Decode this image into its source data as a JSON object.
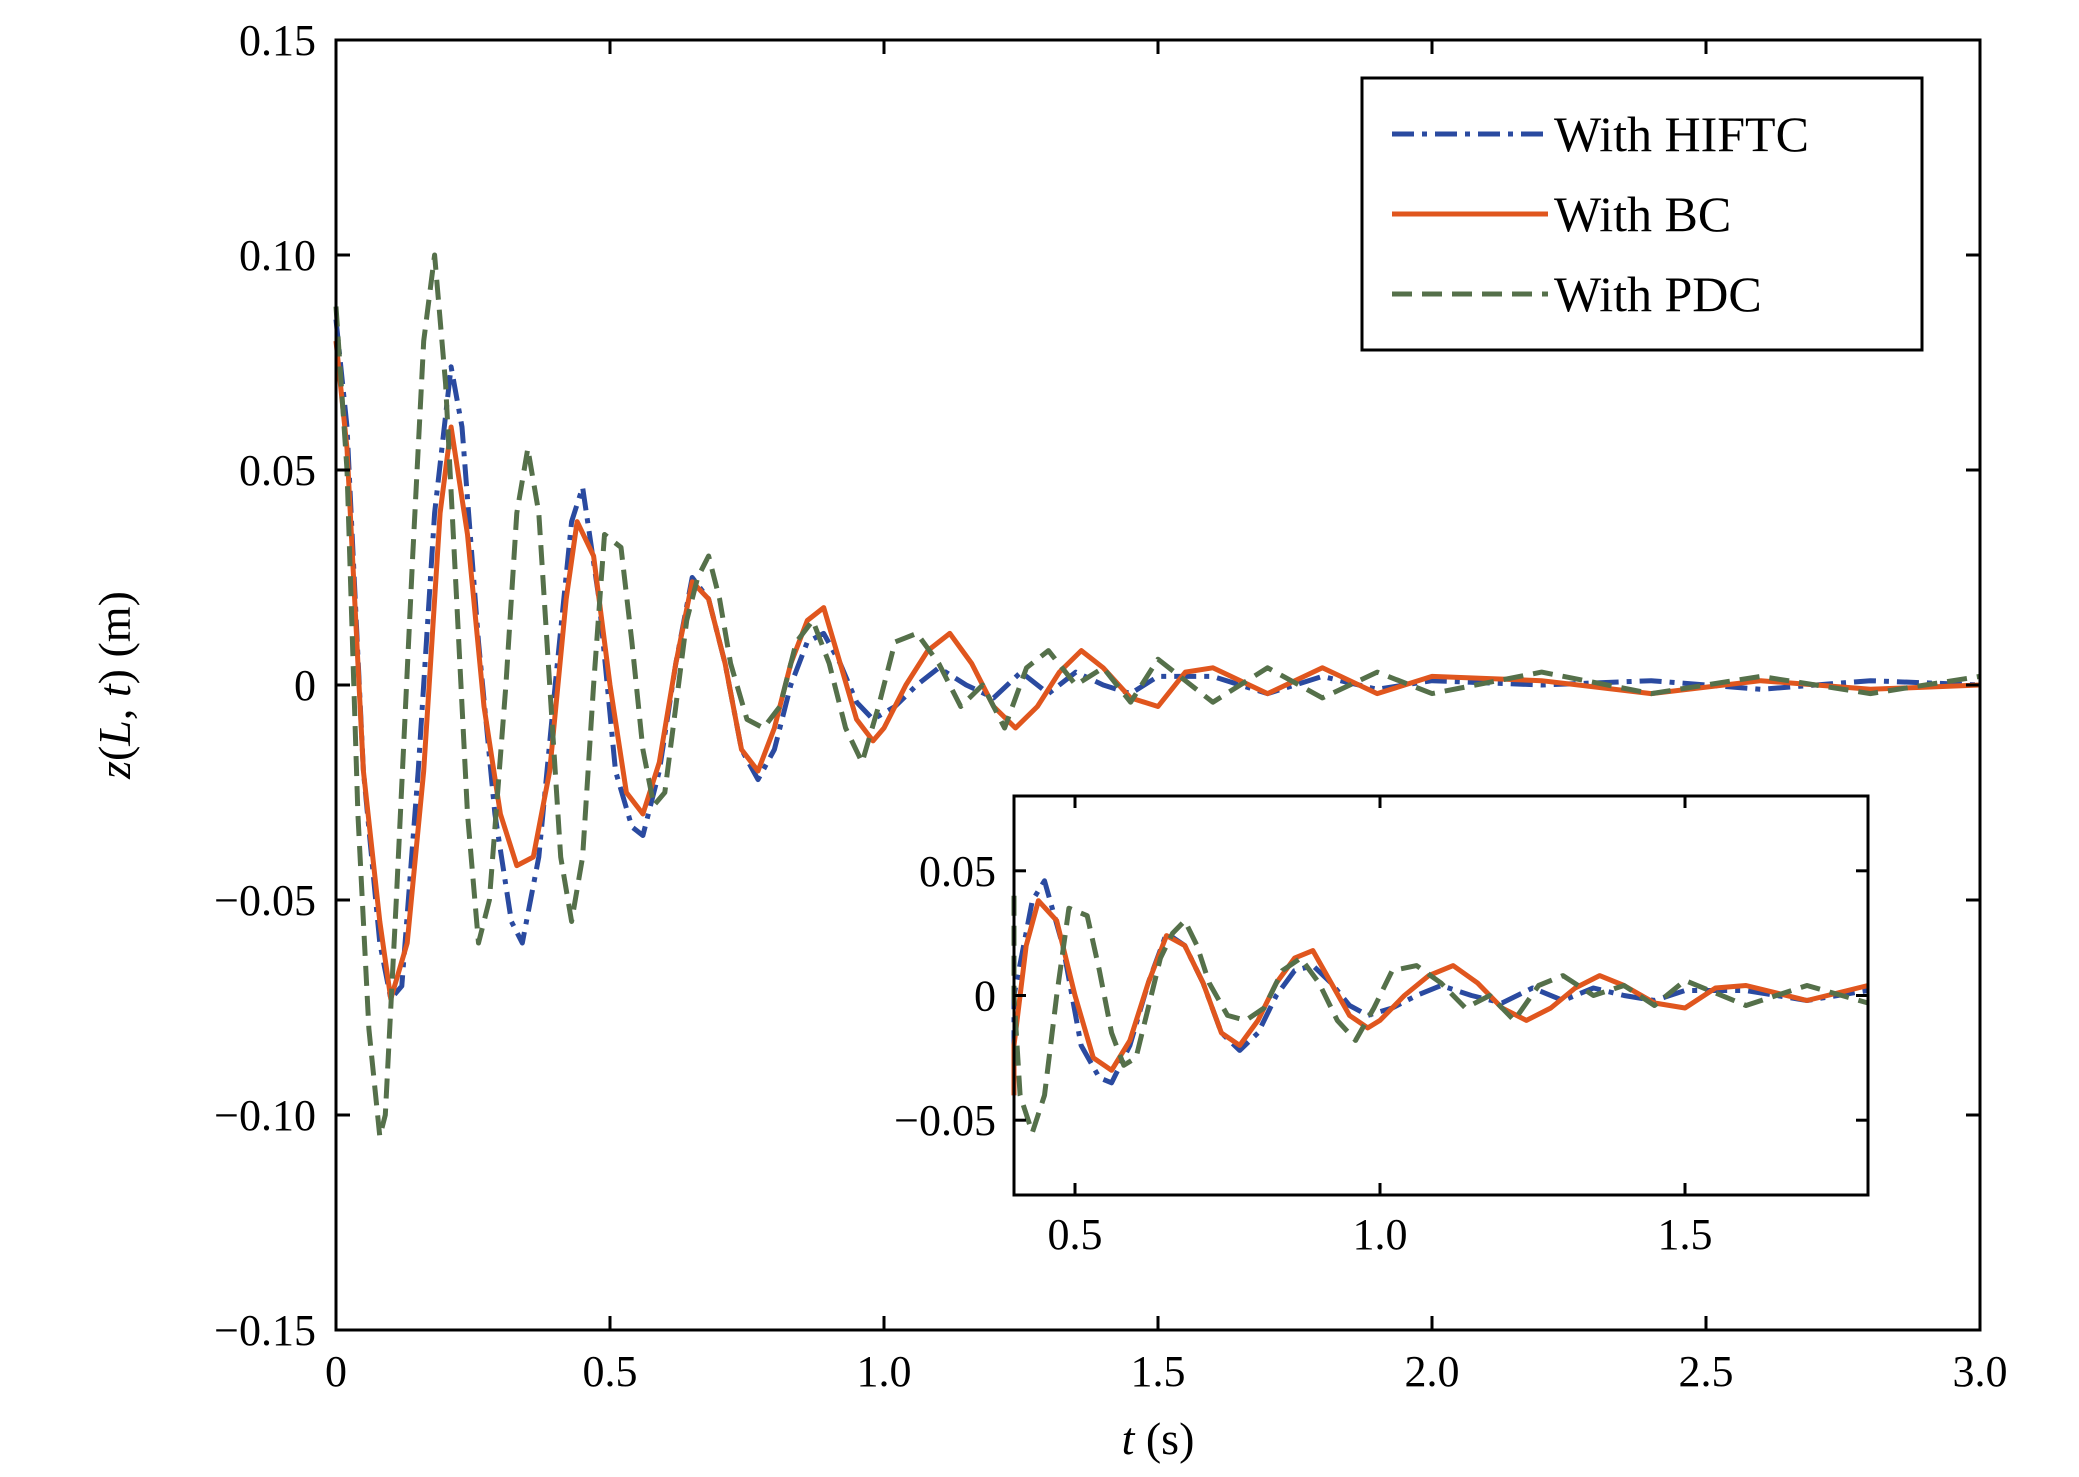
{
  "chart_data": [
    {
      "type": "line",
      "xlabel_var": "t",
      "xlabel_unit": " (s)",
      "ylabel": "z(L, t) (m)",
      "ylabel_parts": [
        "z",
        "(",
        "L",
        ", ",
        "t",
        ") (m)"
      ],
      "xlim": [
        0,
        3.0
      ],
      "ylim": [
        -0.15,
        0.15
      ],
      "x_ticks": [
        0,
        0.5,
        1.0,
        1.5,
        2.0,
        2.5,
        3.0
      ],
      "x_tick_labels": [
        "0",
        "0.5",
        "1.0",
        "1.5",
        "2.0",
        "2.5",
        "3.0"
      ],
      "y_ticks": [
        -0.15,
        -0.1,
        -0.05,
        0,
        0.05,
        0.1,
        0.15
      ],
      "y_tick_labels": [
        "−0.15",
        "−0.10",
        "−0.05",
        "0",
        "0.05",
        "0.10",
        "0.15"
      ],
      "grid": false,
      "legend_position": "top-right",
      "series": [
        {
          "name": "With HIFTC",
          "color": "#2a4aa0",
          "style": "dash-dot",
          "x": [
            0,
            0.02,
            0.05,
            0.08,
            0.1,
            0.12,
            0.15,
            0.18,
            0.21,
            0.23,
            0.26,
            0.29,
            0.32,
            0.34,
            0.37,
            0.4,
            0.43,
            0.45,
            0.48,
            0.51,
            0.54,
            0.56,
            0.59,
            0.62,
            0.65,
            0.68,
            0.71,
            0.74,
            0.77,
            0.8,
            0.83,
            0.86,
            0.89,
            0.92,
            0.95,
            0.98,
            1.02,
            1.06,
            1.1,
            1.15,
            1.2,
            1.25,
            1.3,
            1.35,
            1.4,
            1.45,
            1.5,
            1.6,
            1.7,
            1.8,
            1.9,
            2.0,
            2.2,
            2.4,
            2.6,
            2.8,
            3.0
          ],
          "y": [
            0.085,
            0.06,
            -0.02,
            -0.06,
            -0.073,
            -0.07,
            -0.02,
            0.04,
            0.074,
            0.06,
            0.01,
            -0.03,
            -0.055,
            -0.06,
            -0.04,
            0.0,
            0.038,
            0.046,
            0.02,
            -0.02,
            -0.033,
            -0.035,
            -0.02,
            0.005,
            0.025,
            0.02,
            0.005,
            -0.015,
            -0.022,
            -0.015,
            0.0,
            0.01,
            0.012,
            0.005,
            -0.004,
            -0.008,
            -0.005,
            0.0,
            0.004,
            0.0,
            -0.003,
            0.003,
            -0.002,
            0.003,
            0.0,
            -0.002,
            0.002,
            0.002,
            -0.002,
            0.002,
            -0.001,
            0.001,
            0.0,
            0.001,
            -0.001,
            0.001,
            0.0
          ]
        },
        {
          "name": "With BC",
          "color": "#e0561e",
          "style": "solid",
          "x": [
            0,
            0.02,
            0.05,
            0.08,
            0.1,
            0.13,
            0.16,
            0.19,
            0.21,
            0.24,
            0.27,
            0.3,
            0.33,
            0.36,
            0.39,
            0.42,
            0.44,
            0.47,
            0.5,
            0.53,
            0.56,
            0.59,
            0.62,
            0.65,
            0.68,
            0.71,
            0.74,
            0.77,
            0.8,
            0.83,
            0.86,
            0.89,
            0.92,
            0.95,
            0.98,
            1.0,
            1.04,
            1.08,
            1.12,
            1.16,
            1.2,
            1.24,
            1.28,
            1.32,
            1.36,
            1.4,
            1.45,
            1.5,
            1.55,
            1.6,
            1.7,
            1.8,
            1.9,
            2.0,
            2.2,
            2.4,
            2.6,
            2.8,
            3.0
          ],
          "y": [
            0.08,
            0.055,
            -0.02,
            -0.055,
            -0.073,
            -0.06,
            -0.02,
            0.04,
            0.06,
            0.035,
            -0.005,
            -0.03,
            -0.042,
            -0.04,
            -0.02,
            0.02,
            0.038,
            0.03,
            0.0,
            -0.025,
            -0.03,
            -0.018,
            0.005,
            0.024,
            0.02,
            0.005,
            -0.015,
            -0.02,
            -0.01,
            0.005,
            0.015,
            0.018,
            0.005,
            -0.008,
            -0.013,
            -0.01,
            0.0,
            0.008,
            0.012,
            0.005,
            -0.005,
            -0.01,
            -0.005,
            0.003,
            0.008,
            0.004,
            -0.003,
            -0.005,
            0.003,
            0.004,
            -0.002,
            0.004,
            -0.002,
            0.002,
            0.001,
            -0.002,
            0.001,
            -0.001,
            0.0
          ]
        },
        {
          "name": "With PDC",
          "color": "#55704a",
          "style": "dash",
          "x": [
            0,
            0.02,
            0.04,
            0.06,
            0.08,
            0.09,
            0.11,
            0.14,
            0.16,
            0.18,
            0.2,
            0.22,
            0.24,
            0.26,
            0.28,
            0.31,
            0.33,
            0.35,
            0.37,
            0.39,
            0.41,
            0.43,
            0.45,
            0.47,
            0.49,
            0.52,
            0.54,
            0.56,
            0.58,
            0.6,
            0.62,
            0.64,
            0.66,
            0.68,
            0.7,
            0.72,
            0.75,
            0.78,
            0.81,
            0.84,
            0.87,
            0.9,
            0.93,
            0.96,
            0.99,
            1.02,
            1.06,
            1.1,
            1.14,
            1.18,
            1.22,
            1.26,
            1.3,
            1.35,
            1.4,
            1.45,
            1.5,
            1.6,
            1.7,
            1.8,
            1.9,
            2.0,
            2.2,
            2.4,
            2.6,
            2.8,
            3.0
          ],
          "y": [
            0.088,
            0.05,
            -0.03,
            -0.08,
            -0.105,
            -0.1,
            -0.05,
            0.03,
            0.08,
            0.1,
            0.07,
            0.02,
            -0.03,
            -0.06,
            -0.05,
            0.0,
            0.04,
            0.055,
            0.04,
            0.0,
            -0.04,
            -0.055,
            -0.04,
            0.0,
            0.035,
            0.032,
            0.01,
            -0.015,
            -0.028,
            -0.025,
            -0.005,
            0.015,
            0.025,
            0.03,
            0.02,
            0.005,
            -0.008,
            -0.01,
            -0.005,
            0.01,
            0.015,
            0.005,
            -0.01,
            -0.018,
            -0.005,
            0.01,
            0.012,
            0.005,
            -0.005,
            0.0,
            -0.01,
            0.004,
            0.008,
            0.0,
            0.004,
            -0.004,
            0.006,
            -0.004,
            0.004,
            -0.003,
            0.003,
            -0.002,
            0.003,
            -0.002,
            0.002,
            -0.002,
            0.002
          ]
        }
      ]
    },
    {
      "type": "line",
      "title": "",
      "xlim": [
        0.4,
        1.8
      ],
      "ylim": [
        -0.08,
        0.08
      ],
      "x_ticks": [
        0.5,
        1.0,
        1.5
      ],
      "x_tick_labels": [
        "0.5",
        "1.0",
        "1.5"
      ],
      "y_ticks": [
        -0.05,
        0,
        0.05
      ],
      "y_tick_labels": [
        "−0.05",
        "0",
        "0.05"
      ],
      "grid": false,
      "note_series": "same series as main chart, zoomed to 0.4–1.8 s"
    }
  ]
}
